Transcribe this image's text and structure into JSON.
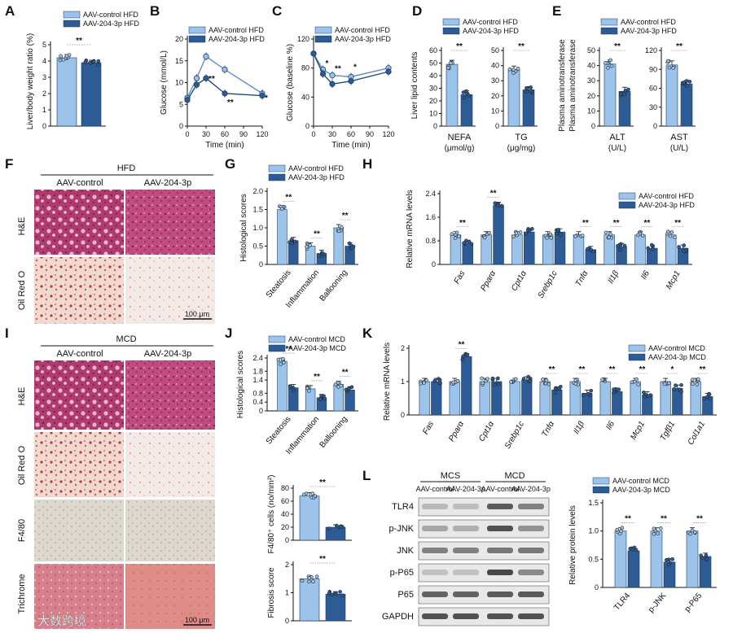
{
  "colors": {
    "light": "#9cc3ea",
    "dark": "#2c5b95",
    "lightLine": "#5b8fc9",
    "darkLine": "#234a7e",
    "he1": "#b0396f",
    "he2": "#c24d82",
    "oro": "#e6c6bf",
    "f480": "#dcd8cf",
    "tri": "#d98891",
    "blot": "#3c3c3c"
  },
  "panels": {
    "A": "A",
    "B": "B",
    "C": "C",
    "D": "D",
    "E": "E",
    "F": "F",
    "G": "G",
    "H": "H",
    "I": "I",
    "J": "J",
    "K": "K",
    "L": "L"
  },
  "legends": {
    "ctrl_hfd": "AAV-control HFD",
    "p_hfd": "AAV-204-3p HFD",
    "ctrl_mcd": "AAV-control MCD",
    "p_mcd": "AAV-204-3p MCD"
  },
  "sig": {
    "dd": "**",
    "d": "*"
  },
  "A": {
    "ylabel": "Liver/body weight ratio (%)",
    "ticks": [
      "0",
      "1",
      "2",
      "3",
      "4",
      "5"
    ]
  },
  "B": {
    "ylabel": "Glucose (mmol/L)",
    "xlabel": "Time (min)",
    "yticks": [
      "0",
      "5",
      "10",
      "15",
      "20"
    ],
    "xticks": [
      "0",
      "30",
      "60",
      "90",
      "120"
    ]
  },
  "C": {
    "ylabel": "Glucose (baseline %)",
    "xlabel": "Time (min)",
    "yticks": [
      "0",
      "40",
      "80",
      "120"
    ],
    "xticks": [
      "0",
      "30",
      "60",
      "90",
      "120"
    ]
  },
  "D": {
    "ylabel": "Liver lipid contents",
    "left": {
      "ticks": [
        "0",
        "10",
        "20",
        "30",
        "40",
        "50",
        "60"
      ],
      "cat": "NEFA",
      "unit": "(μmol/g)"
    },
    "right": {
      "ticks": [
        "0",
        "10",
        "20",
        "30",
        "40",
        "50"
      ],
      "cat": "TG",
      "unit": "(μg/mg)"
    }
  },
  "E": {
    "ylabel": "Plasma aminotransferase",
    "left": {
      "ticks": [
        "0",
        "10",
        "20",
        "30",
        "40",
        "50"
      ],
      "cat": "ALT",
      "unit": "(U/L)"
    },
    "right": {
      "ticks": [
        "0",
        "30",
        "60",
        "90",
        "120"
      ],
      "cat": "AST",
      "unit": "(U/L)"
    }
  },
  "F": {
    "title": "HFD",
    "cols": [
      "AAV-control",
      "AAV-204-3p"
    ],
    "rows": [
      "H&E",
      "Oil Red O"
    ],
    "scale": "100 μm"
  },
  "G": {
    "ylabel": "Histological scores",
    "ticks": [
      "0",
      "0.5",
      "1.0",
      "1.5",
      "2.0"
    ],
    "cats": [
      "Steatosis",
      "Inflammation",
      "Ballooning"
    ]
  },
  "H": {
    "ylabel": "Relative mRNA levels",
    "ticks": [
      "0",
      "0.8",
      "1.6",
      "2.4"
    ],
    "genes": [
      "Fas",
      "Pparα",
      "Cpt1α",
      "Srebp1c",
      "Tnfα",
      "Il1β",
      "Il6",
      "Mcp1"
    ]
  },
  "I": {
    "title": "MCD",
    "cols": [
      "AAV-control",
      "AAV-204-3p"
    ],
    "rows": [
      "H&E",
      "Oil Red O",
      "F4/80",
      "Trichrome"
    ],
    "scale": "100 μm"
  },
  "J": {
    "ylabel": "Histological scores",
    "ticks": [
      "0",
      "0.4",
      "0.8",
      "1.4",
      "1.8",
      "2.4"
    ],
    "cats": [
      "Steatosis",
      "Inflammation",
      "Ballooning"
    ],
    "f480": {
      "ylabel": "F4/80⁺ cells (no/mm²)",
      "ticks": [
        "0",
        "20",
        "40",
        "60",
        "80"
      ]
    },
    "fib": {
      "ylabel": "Fibrosis score",
      "ticks": [
        "0",
        "1",
        "2"
      ]
    }
  },
  "K": {
    "ylabel": "Relative mRNA levels",
    "ticks": [
      "0",
      "1",
      "2"
    ],
    "genes": [
      "Fas",
      "Pparα",
      "Cpt1α",
      "Srebp1c",
      "Tnfα",
      "Il1β",
      "Il6",
      "Mcp1",
      "Tgfβ1",
      "Col1a1"
    ]
  },
  "L": {
    "groups": [
      "MCS",
      "MCD"
    ],
    "lanes": [
      "AAV-control",
      "AAV-204-3p",
      "AAV-control",
      "AAV-204-3p"
    ],
    "proteins": [
      "TLR4",
      "p-JNK",
      "JNK",
      "p-P65",
      "P65",
      "GAPDH"
    ],
    "ylabel": "Relative protein levels",
    "ticks": [
      "0",
      "0.5",
      "1.0",
      "1.5"
    ],
    "cats": [
      "TLR4",
      "p-JNK",
      "p-P65"
    ]
  },
  "watermark": "大数跨境",
  "chart_data": [
    {
      "panel": "A",
      "type": "bar",
      "categories": [
        "AAV-control HFD",
        "AAV-204-3p HFD"
      ],
      "values": [
        4.2,
        3.9
      ],
      "ylabel": "Liver/body weight ratio (%)",
      "ylim": [
        0,
        5
      ]
    },
    {
      "panel": "B",
      "type": "line",
      "x": [
        0,
        15,
        30,
        60,
        120
      ],
      "series": [
        {
          "name": "AAV-control HFD",
          "values": [
            6.5,
            11,
            16,
            13,
            7.5
          ]
        },
        {
          "name": "AAV-204-3p HFD",
          "values": [
            6,
            9.5,
            11,
            7.5,
            7
          ]
        }
      ],
      "xlabel": "Time (min)",
      "ylabel": "Glucose (mmol/L)",
      "ylim": [
        0,
        20
      ]
    },
    {
      "panel": "C",
      "type": "line",
      "x": [
        0,
        15,
        30,
        60,
        120
      ],
      "series": [
        {
          "name": "AAV-control HFD",
          "values": [
            100,
            78,
            70,
            68,
            80
          ]
        },
        {
          "name": "AAV-204-3p HFD",
          "values": [
            100,
            72,
            58,
            62,
            75
          ]
        }
      ],
      "xlabel": "Time (min)",
      "ylabel": "Glucose (baseline %)",
      "ylim": [
        0,
        120
      ]
    },
    {
      "panel": "D",
      "type": "bar",
      "categories": [
        "NEFA",
        "TG"
      ],
      "series": [
        {
          "name": "AAV-control HFD",
          "values": [
            49,
            37
          ]
        },
        {
          "name": "AAV-204-3p HFD",
          "values": [
            25,
            24
          ]
        }
      ],
      "ylabel": "Liver lipid contents"
    },
    {
      "panel": "E",
      "type": "bar",
      "categories": [
        "ALT",
        "AST"
      ],
      "series": [
        {
          "name": "AAV-control HFD",
          "values": [
            41,
            97
          ]
        },
        {
          "name": "AAV-204-3p HFD",
          "values": [
            23,
            67
          ]
        }
      ],
      "ylabel": "Plasma aminotransferase"
    },
    {
      "panel": "G",
      "type": "bar",
      "categories": [
        "Steatosis",
        "Inflammation",
        "Ballooning"
      ],
      "series": [
        {
          "name": "AAV-control HFD",
          "values": [
            1.5,
            0.5,
            1.0
          ]
        },
        {
          "name": "AAV-204-3p HFD",
          "values": [
            0.65,
            0.3,
            0.5
          ]
        }
      ],
      "ylabel": "Histological scores",
      "ylim": [
        0,
        2
      ]
    },
    {
      "panel": "H",
      "type": "bar",
      "categories": [
        "Fas",
        "Pparα",
        "Cpt1α",
        "Srebp1c",
        "Tnfα",
        "Il1β",
        "Il6",
        "Mcp1"
      ],
      "series": [
        {
          "name": "AAV-control HFD",
          "values": [
            1.0,
            1.0,
            1.0,
            1.0,
            1.0,
            1.0,
            1.0,
            1.0
          ]
        },
        {
          "name": "AAV-204-3p HFD",
          "values": [
            0.7,
            2.0,
            1.1,
            1.1,
            0.5,
            0.6,
            0.55,
            0.55
          ]
        }
      ],
      "ylabel": "Relative mRNA levels",
      "ylim": [
        0,
        2.4
      ]
    },
    {
      "panel": "J",
      "type": "bar",
      "categories": [
        "Steatosis",
        "Inflammation",
        "Ballooning"
      ],
      "series": [
        {
          "name": "AAV-control MCD",
          "values": [
            2.25,
            1.0,
            1.2
          ]
        },
        {
          "name": "AAV-204-3p MCD",
          "values": [
            1.05,
            0.6,
            0.95
          ]
        }
      ],
      "ylabel": "Histological scores",
      "ylim": [
        0,
        2.4
      ]
    },
    {
      "panel": "J-F4/80",
      "type": "bar",
      "categories": [
        "AAV-control MCD",
        "AAV-204-3p MCD"
      ],
      "values": [
        68,
        20
      ],
      "ylabel": "F4/80⁺ cells (no/mm²)",
      "ylim": [
        0,
        80
      ]
    },
    {
      "panel": "J-Fibrosis",
      "type": "bar",
      "categories": [
        "AAV-control MCD",
        "AAV-204-3p MCD"
      ],
      "values": [
        1.5,
        0.95
      ],
      "ylabel": "Fibrosis score",
      "ylim": [
        0,
        2
      ]
    },
    {
      "panel": "K",
      "type": "bar",
      "categories": [
        "Fas",
        "Pparα",
        "Cpt1α",
        "Srebp1c",
        "Tnfα",
        "Il1β",
        "Il6",
        "Mcp1",
        "Tgfβ1",
        "Col1a1"
      ],
      "series": [
        {
          "name": "AAV-control MCD",
          "values": [
            1.0,
            1.0,
            1.0,
            1.0,
            1.0,
            1.0,
            1.0,
            1.0,
            1.0,
            1.0
          ]
        },
        {
          "name": "AAV-204-3p MCD",
          "values": [
            1.0,
            1.75,
            1.0,
            1.05,
            0.75,
            0.65,
            0.7,
            0.6,
            0.8,
            0.55
          ]
        }
      ],
      "ylabel": "Relative mRNA levels",
      "ylim": [
        0,
        2
      ]
    },
    {
      "panel": "L",
      "type": "bar",
      "categories": [
        "TLR4",
        "p-JNK",
        "p-P65"
      ],
      "series": [
        {
          "name": "AAV-control MCD",
          "values": [
            1.0,
            1.0,
            1.0
          ]
        },
        {
          "name": "AAV-204-3p MCD",
          "values": [
            0.65,
            0.45,
            0.55
          ]
        }
      ],
      "ylabel": "Relative protein levels",
      "ylim": [
        0,
        1.5
      ]
    }
  ]
}
